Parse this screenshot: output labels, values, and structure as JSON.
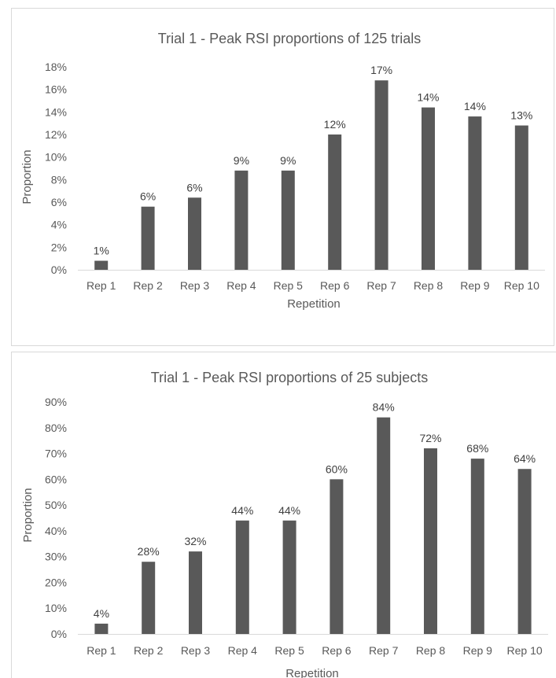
{
  "chart_data": [
    {
      "type": "bar",
      "title": "Trial 1 - Peak RSI proportions of 125 trials",
      "xlabel": "Repetition",
      "ylabel": "Proportion",
      "categories": [
        "Rep 1",
        "Rep 2",
        "Rep 3",
        "Rep 4",
        "Rep 5",
        "Rep 6",
        "Rep 7",
        "Rep 8",
        "Rep 9",
        "Rep 10"
      ],
      "values": [
        0.8,
        5.6,
        6.4,
        8.8,
        8.8,
        12.0,
        16.8,
        14.4,
        13.6,
        12.8
      ],
      "data_labels": [
        "1%",
        "6%",
        "6%",
        "9%",
        "9%",
        "12%",
        "17%",
        "14%",
        "14%",
        "13%"
      ],
      "ylim": [
        0,
        18
      ],
      "yticks": [
        "0%",
        "2%",
        "4%",
        "6%",
        "8%",
        "10%",
        "12%",
        "14%",
        "16%",
        "18%"
      ],
      "grid": false,
      "legend": "none",
      "bar_color": "#595959"
    },
    {
      "type": "bar",
      "title": "Trial 1 - Peak RSI proportions of 25 subjects",
      "xlabel": "Repetition",
      "ylabel": "Proportion",
      "categories": [
        "Rep 1",
        "Rep 2",
        "Rep 3",
        "Rep 4",
        "Rep 5",
        "Rep 6",
        "Rep 7",
        "Rep 8",
        "Rep 9",
        "Rep 10"
      ],
      "values": [
        4,
        28,
        32,
        44,
        44,
        60,
        84,
        72,
        68,
        64
      ],
      "data_labels": [
        "4%",
        "28%",
        "32%",
        "44%",
        "44%",
        "60%",
        "84%",
        "72%",
        "68%",
        "64%"
      ],
      "ylim": [
        0,
        90
      ],
      "yticks": [
        "0%",
        "10%",
        "20%",
        "30%",
        "40%",
        "50%",
        "60%",
        "70%",
        "80%",
        "90%"
      ],
      "grid": false,
      "legend": "none",
      "bar_color": "#595959"
    }
  ]
}
